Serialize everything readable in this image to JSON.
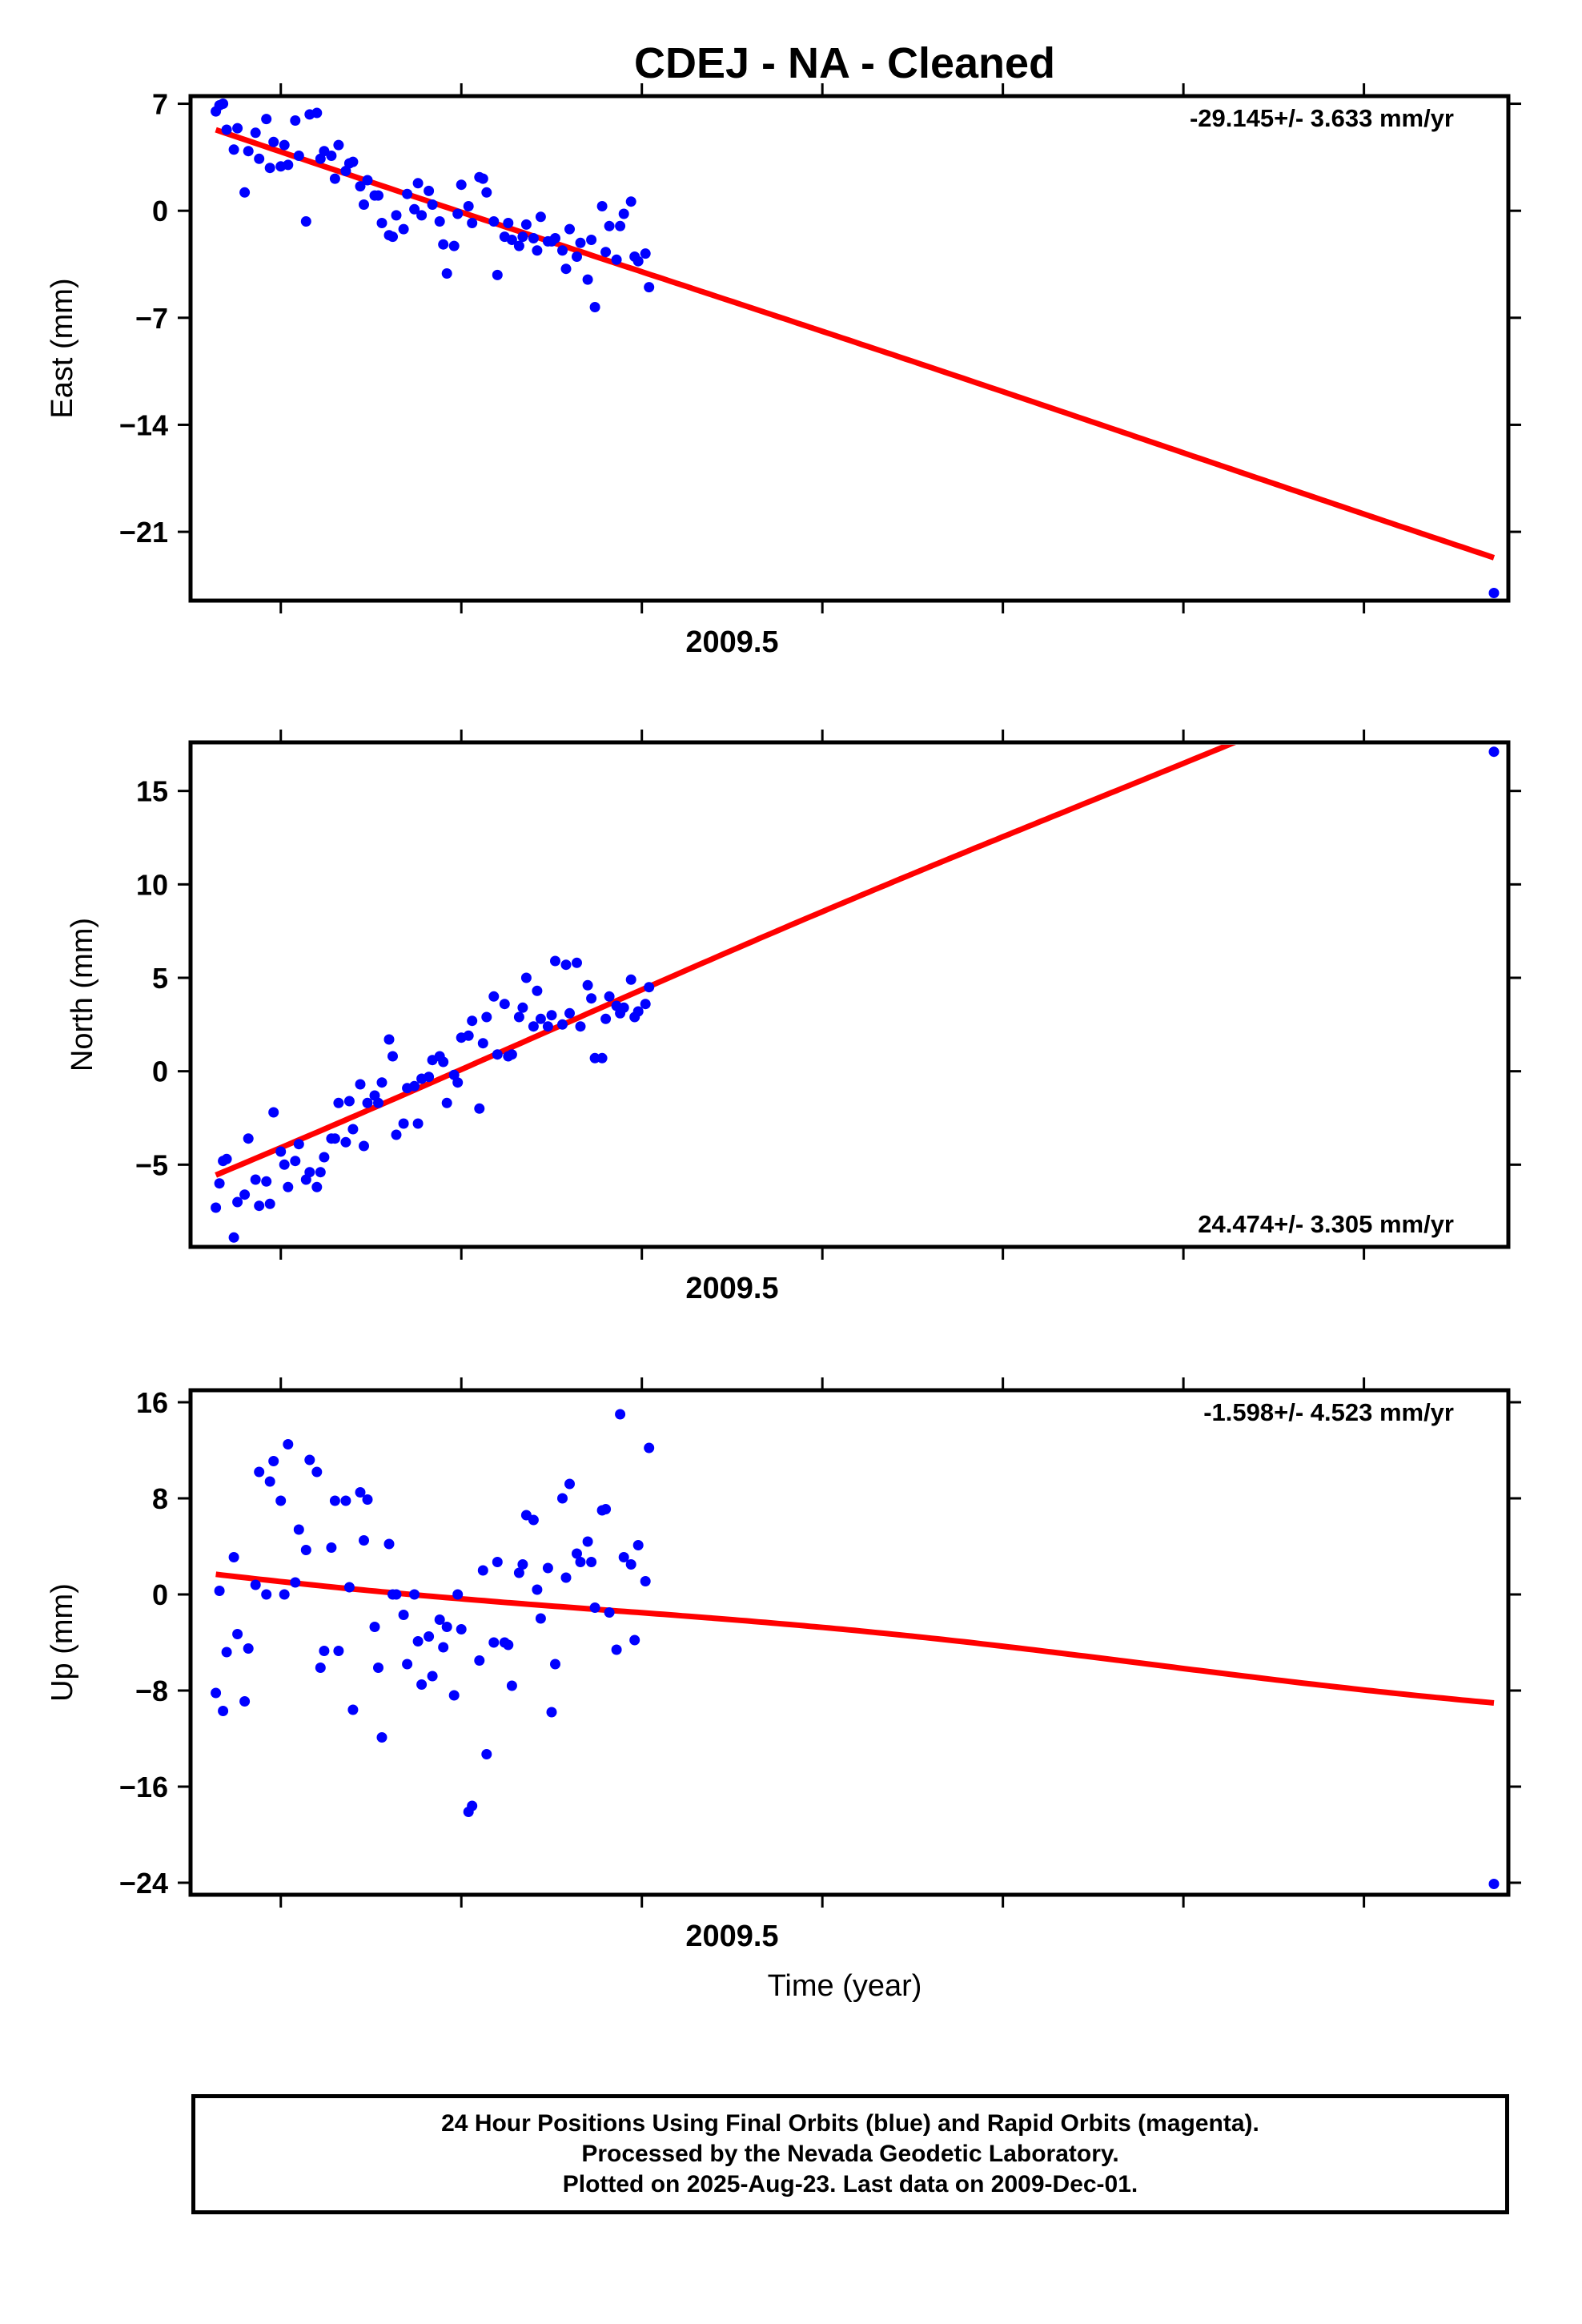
{
  "title": "CDEJ  - NA - Cleaned",
  "xlabel": "Time (year)",
  "footer": {
    "line1": "24 Hour Positions Using Final Orbits (blue) and Rapid Orbits (magenta).",
    "line2": "Processed by the Nevada Geodetic Laboratory.",
    "line3": "Plotted on 2025-Aug-23. Last data on 2009-Dec-01."
  },
  "colors": {
    "data": "#0000ff",
    "fit": "#ff0000",
    "frame": "#000000"
  },
  "chart_data": [
    {
      "type": "scatter",
      "name": "east",
      "ylabel": "East (mm)",
      "rate_label": "-29.145+/- 3.633 mm/yr",
      "rate_position": "top-right",
      "xlim": [
        2009.35,
        2009.715
      ],
      "ylim": [
        -25.5,
        7.5
      ],
      "yticks": [
        7,
        0,
        -7,
        -14,
        -21
      ],
      "xtick_labels": [
        "2009.5"
      ],
      "x": [
        2009.357,
        2009.358,
        2009.359,
        2009.36,
        2009.362,
        2009.363,
        2009.365,
        2009.366,
        2009.368,
        2009.369,
        2009.371,
        2009.372,
        2009.373,
        2009.375,
        2009.376,
        2009.377,
        2009.379,
        2009.38,
        2009.382,
        2009.383,
        2009.385,
        2009.386,
        2009.387,
        2009.389,
        2009.39,
        2009.391,
        2009.393,
        2009.394,
        2009.395,
        2009.397,
        2009.398,
        2009.399,
        2009.401,
        2009.402,
        2009.403,
        2009.405,
        2009.406,
        2009.407,
        2009.409,
        2009.41,
        2009.412,
        2009.413,
        2009.414,
        2009.416,
        2009.417,
        2009.419,
        2009.42,
        2009.421,
        2009.423,
        2009.424,
        2009.425,
        2009.427,
        2009.428,
        2009.43,
        2009.431,
        2009.432,
        2009.434,
        2009.435,
        2009.437,
        2009.438,
        2009.439,
        2009.441,
        2009.442,
        2009.443,
        2009.445,
        2009.446,
        2009.447,
        2009.449,
        2009.45,
        2009.451,
        2009.453,
        2009.454,
        2009.455,
        2009.457,
        2009.458,
        2009.46,
        2009.461,
        2009.462,
        2009.464,
        2009.465,
        2009.466,
        2009.468,
        2009.469,
        2009.47,
        2009.472,
        2009.473,
        2009.474,
        2009.476,
        2009.477,
        2009.711
      ],
      "y": [
        6.5,
        6.9,
        7.0,
        5.3,
        4.0,
        5.4,
        1.2,
        3.9,
        5.1,
        3.4,
        6.0,
        2.8,
        4.5,
        2.9,
        4.3,
        3.0,
        5.9,
        3.6,
        -0.7,
        6.3,
        6.4,
        3.4,
        3.9,
        3.6,
        2.1,
        4.3,
        2.6,
        3.1,
        3.2,
        1.6,
        0.4,
        2.0,
        1.0,
        1.0,
        -0.8,
        -1.6,
        -1.7,
        -0.3,
        -1.2,
        1.1,
        0.1,
        1.8,
        -0.3,
        1.3,
        0.4,
        -0.7,
        -2.2,
        -4.1,
        -2.3,
        -0.2,
        1.7,
        0.3,
        -0.8,
        2.2,
        2.1,
        1.2,
        -0.7,
        -4.2,
        -1.7,
        -0.8,
        -1.9,
        -2.3,
        -1.7,
        -0.9,
        -1.8,
        -2.6,
        -0.4,
        -2.0,
        -2.0,
        -1.8,
        -2.6,
        -3.8,
        -1.2,
        -3.0,
        -2.1,
        -4.5,
        -1.9,
        -6.3,
        0.3,
        -2.7,
        -1.0,
        -3.2,
        -1.0,
        -0.2,
        0.6,
        -3.0,
        -3.3,
        -2.8,
        -5.0,
        -25.0
      ]
    },
    {
      "type": "scatter",
      "name": "north",
      "ylabel": "North (mm)",
      "rate_label": "24.474+/- 3.305 mm/yr",
      "rate_position": "bottom-right",
      "xlim": [
        2009.35,
        2009.715
      ],
      "ylim": [
        -9.4,
        17.6
      ],
      "yticks": [
        15,
        10,
        5,
        0,
        -5
      ],
      "xtick_labels": [
        "2009.5"
      ],
      "x": [
        2009.357,
        2009.358,
        2009.359,
        2009.36,
        2009.362,
        2009.363,
        2009.365,
        2009.366,
        2009.368,
        2009.369,
        2009.371,
        2009.372,
        2009.373,
        2009.375,
        2009.376,
        2009.377,
        2009.379,
        2009.38,
        2009.382,
        2009.383,
        2009.385,
        2009.386,
        2009.387,
        2009.389,
        2009.39,
        2009.391,
        2009.393,
        2009.394,
        2009.395,
        2009.397,
        2009.398,
        2009.399,
        2009.401,
        2009.402,
        2009.403,
        2009.405,
        2009.406,
        2009.407,
        2009.409,
        2009.41,
        2009.412,
        2009.413,
        2009.414,
        2009.416,
        2009.417,
        2009.419,
        2009.42,
        2009.421,
        2009.423,
        2009.424,
        2009.425,
        2009.427,
        2009.428,
        2009.43,
        2009.431,
        2009.432,
        2009.434,
        2009.435,
        2009.437,
        2009.438,
        2009.439,
        2009.441,
        2009.442,
        2009.443,
        2009.445,
        2009.446,
        2009.447,
        2009.449,
        2009.45,
        2009.451,
        2009.453,
        2009.454,
        2009.455,
        2009.457,
        2009.458,
        2009.46,
        2009.461,
        2009.462,
        2009.464,
        2009.465,
        2009.466,
        2009.468,
        2009.469,
        2009.47,
        2009.472,
        2009.473,
        2009.474,
        2009.476,
        2009.477,
        2009.711
      ],
      "y": [
        -7.3,
        -6.0,
        -4.8,
        -4.7,
        -8.9,
        -7.0,
        -6.6,
        -3.6,
        -5.8,
        -7.2,
        -5.9,
        -7.1,
        -2.2,
        -4.3,
        -5.0,
        -6.2,
        -4.8,
        -3.9,
        -5.8,
        -5.4,
        -6.2,
        -5.4,
        -4.6,
        -3.6,
        -3.6,
        -1.7,
        -3.8,
        -1.6,
        -3.1,
        -0.7,
        -4.0,
        -1.7,
        -1.3,
        -1.7,
        -0.6,
        1.7,
        0.8,
        -3.4,
        -2.8,
        -0.9,
        -0.8,
        -2.8,
        -0.4,
        -0.3,
        0.6,
        0.8,
        0.5,
        -1.7,
        -0.2,
        -0.6,
        1.8,
        1.9,
        2.7,
        -2.0,
        1.5,
        2.9,
        4.0,
        0.9,
        3.6,
        0.8,
        0.9,
        2.9,
        3.4,
        5.0,
        2.4,
        4.3,
        2.8,
        2.4,
        3.0,
        5.9,
        2.5,
        5.7,
        3.1,
        5.8,
        2.4,
        4.6,
        3.9,
        0.7,
        0.7,
        2.8,
        4.0,
        3.5,
        3.1,
        3.4,
        4.9,
        2.9,
        3.2,
        3.6,
        4.5,
        17.1
      ]
    },
    {
      "type": "scatter",
      "name": "up",
      "ylabel": "Up (mm)",
      "rate_label": "-1.598+/- 4.523 mm/yr",
      "rate_position": "top-right",
      "xlim": [
        2009.35,
        2009.715
      ],
      "ylim": [
        -25,
        17
      ],
      "yticks": [
        16,
        8,
        0,
        -8,
        -16,
        -24
      ],
      "xtick_labels": [
        "2009.5"
      ],
      "x": [
        2009.357,
        2009.358,
        2009.359,
        2009.36,
        2009.362,
        2009.363,
        2009.365,
        2009.366,
        2009.368,
        2009.369,
        2009.371,
        2009.372,
        2009.373,
        2009.375,
        2009.376,
        2009.377,
        2009.379,
        2009.38,
        2009.382,
        2009.383,
        2009.385,
        2009.386,
        2009.387,
        2009.389,
        2009.39,
        2009.391,
        2009.393,
        2009.394,
        2009.395,
        2009.397,
        2009.398,
        2009.399,
        2009.401,
        2009.402,
        2009.403,
        2009.405,
        2009.406,
        2009.407,
        2009.409,
        2009.41,
        2009.412,
        2009.413,
        2009.414,
        2009.416,
        2009.417,
        2009.419,
        2009.42,
        2009.421,
        2009.423,
        2009.424,
        2009.425,
        2009.427,
        2009.428,
        2009.43,
        2009.431,
        2009.432,
        2009.434,
        2009.435,
        2009.437,
        2009.438,
        2009.439,
        2009.441,
        2009.442,
        2009.443,
        2009.445,
        2009.446,
        2009.447,
        2009.449,
        2009.45,
        2009.451,
        2009.453,
        2009.454,
        2009.455,
        2009.457,
        2009.458,
        2009.46,
        2009.461,
        2009.462,
        2009.464,
        2009.465,
        2009.466,
        2009.468,
        2009.469,
        2009.47,
        2009.472,
        2009.473,
        2009.474,
        2009.476,
        2009.477,
        2009.711
      ],
      "y": [
        -8.2,
        0.3,
        -9.7,
        -4.8,
        3.1,
        -3.3,
        -8.9,
        -4.5,
        0.8,
        10.2,
        0.0,
        9.4,
        11.1,
        7.8,
        0.0,
        12.5,
        1.0,
        5.4,
        3.7,
        11.2,
        10.2,
        -6.1,
        -4.7,
        3.9,
        7.8,
        -4.7,
        7.8,
        0.6,
        -9.6,
        8.5,
        4.5,
        7.9,
        -2.7,
        -6.1,
        -11.9,
        4.2,
        0.0,
        0.0,
        -1.7,
        -5.8,
        0.0,
        -3.9,
        -7.5,
        -3.5,
        -6.8,
        -2.1,
        -4.4,
        -2.7,
        -8.4,
        0.0,
        -2.9,
        -18.1,
        -17.6,
        -5.5,
        2.0,
        -13.3,
        -4.0,
        2.7,
        -4.0,
        -4.2,
        -7.6,
        1.8,
        2.5,
        6.6,
        6.2,
        0.4,
        -2.0,
        2.2,
        -9.8,
        -5.8,
        8.0,
        1.4,
        9.2,
        3.4,
        2.7,
        4.4,
        2.7,
        -1.1,
        7.0,
        7.1,
        -1.5,
        -4.6,
        15.0,
        3.1,
        2.5,
        -3.8,
        4.1,
        1.1,
        12.2,
        -24.1
      ]
    }
  ]
}
